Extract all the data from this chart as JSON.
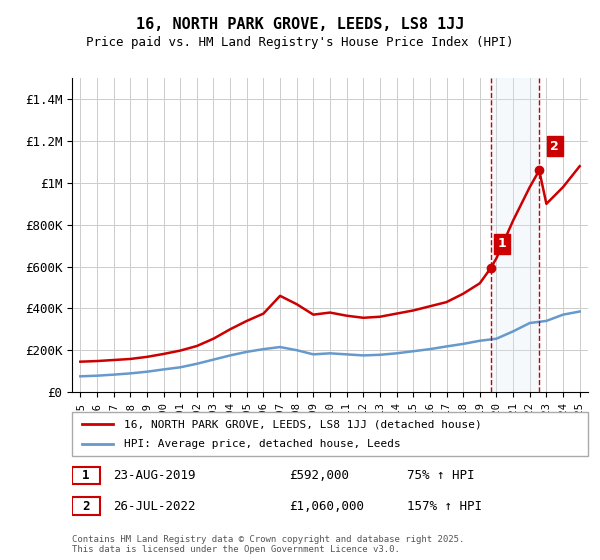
{
  "title": "16, NORTH PARK GROVE, LEEDS, LS8 1JJ",
  "subtitle": "Price paid vs. HM Land Registry's House Price Index (HPI)",
  "background_color": "#ffffff",
  "plot_bg_color": "#ffffff",
  "grid_color": "#cccccc",
  "shaded_region_color": "#dce9f7",
  "red_dashed_x1": 2019.65,
  "red_dashed_x2": 2022.57,
  "sale1_label": "1",
  "sale1_date": "23-AUG-2019",
  "sale1_price": "£592,000",
  "sale1_hpi": "75% ↑ HPI",
  "sale1_x": 2019.65,
  "sale1_y": 592000,
  "sale2_label": "2",
  "sale2_date": "26-JUL-2022",
  "sale2_price": "£1,060,000",
  "sale2_hpi": "157% ↑ HPI",
  "sale2_x": 2022.57,
  "sale2_y": 1060000,
  "legend_line1": "16, NORTH PARK GROVE, LEEDS, LS8 1JJ (detached house)",
  "legend_line2": "HPI: Average price, detached house, Leeds",
  "footer": "Contains HM Land Registry data © Crown copyright and database right 2025.\nThis data is licensed under the Open Government Licence v3.0.",
  "ylim": [
    0,
    1500000
  ],
  "yticks": [
    0,
    200000,
    400000,
    600000,
    800000,
    1000000,
    1200000,
    1400000
  ],
  "ytick_labels": [
    "£0",
    "£200K",
    "£400K",
    "£600K",
    "£800K",
    "£1M",
    "£1.2M",
    "£1.4M"
  ],
  "xlim": [
    1994.5,
    2025.5
  ],
  "red_line_color": "#cc0000",
  "blue_line_color": "#6699cc",
  "sale_marker_color": "#cc0000",
  "annotation_box_color": "#cc0000"
}
